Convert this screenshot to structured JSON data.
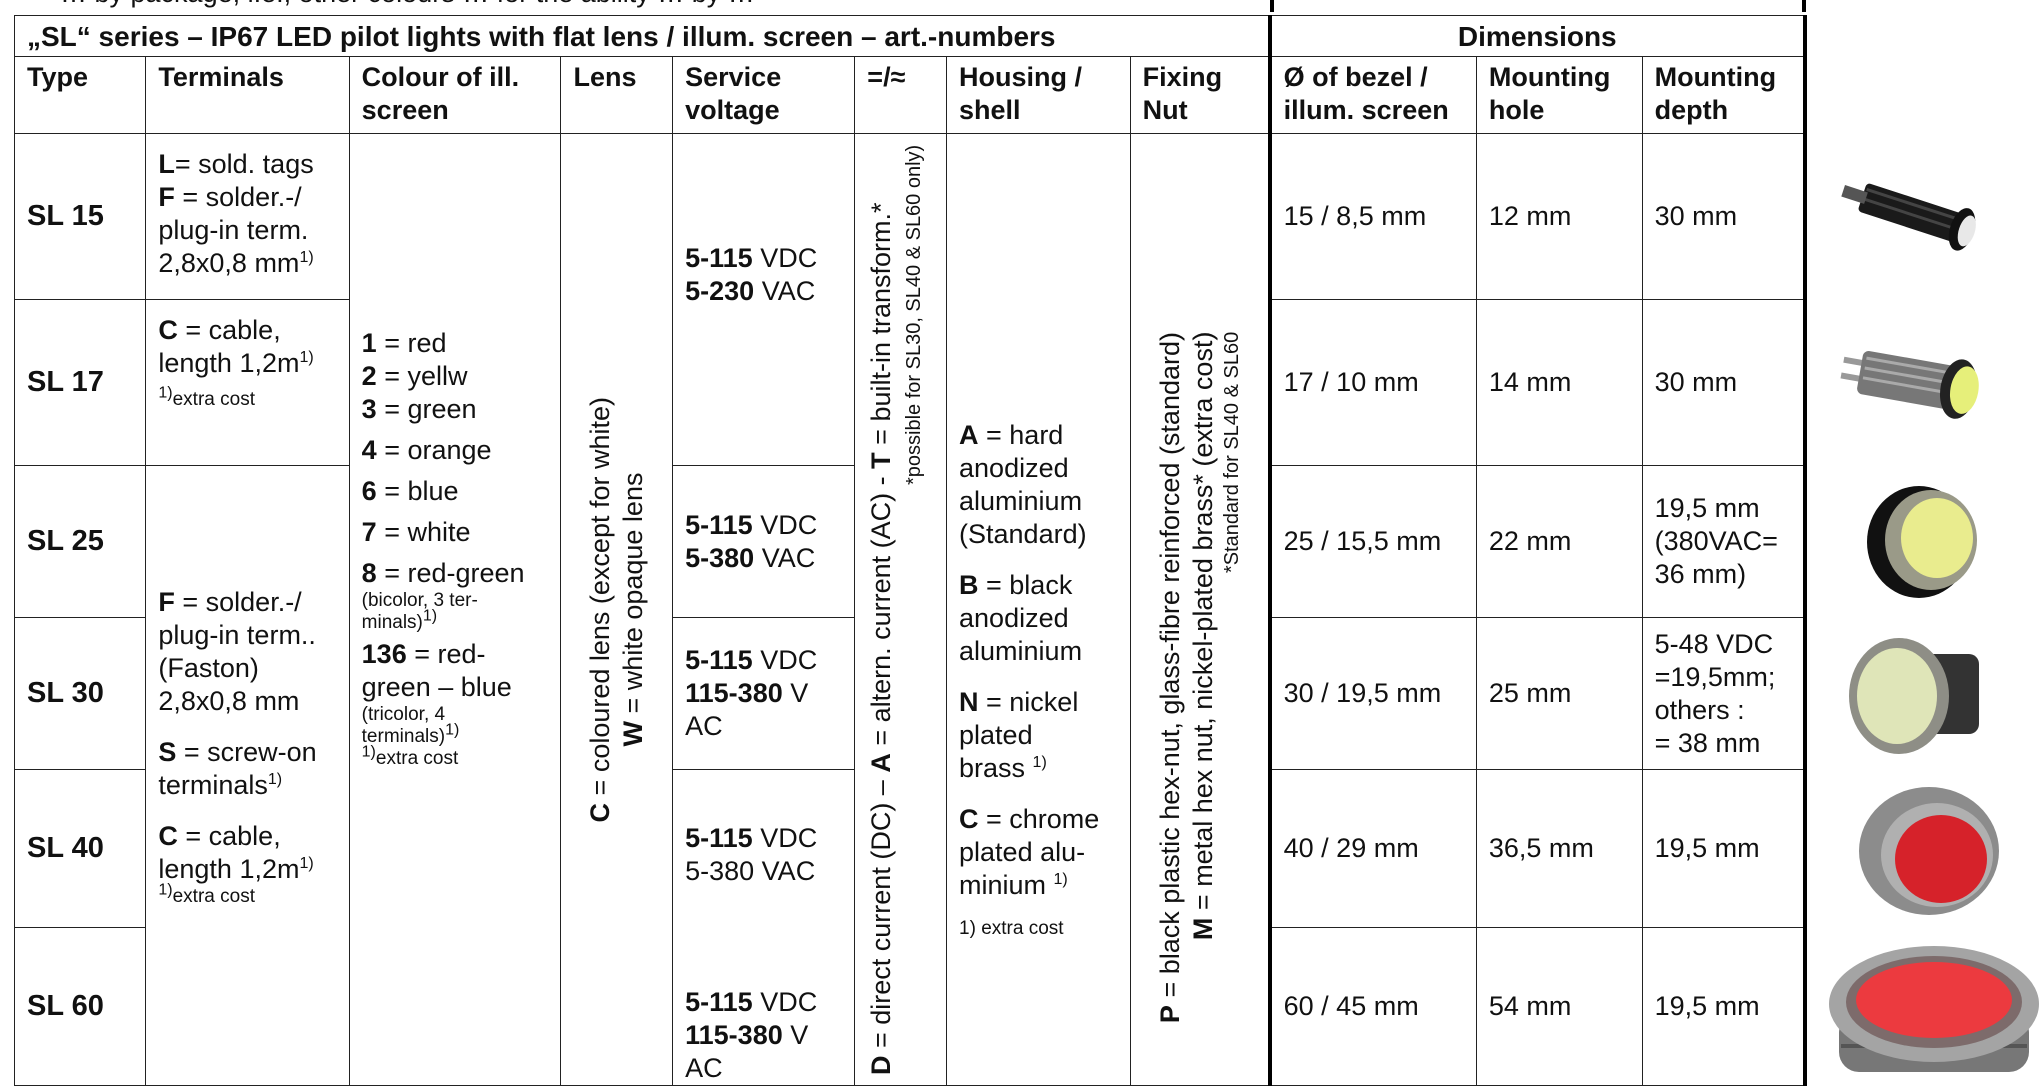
{
  "top_cut_text": "… by package, i.e., other colours … for the ability … by … ",
  "title": "„SL“ series – IP67 LED pilot lights with flat lens / illum. screen – art.-numbers",
  "dimensions_header": "Dimensions",
  "columns": {
    "type": "Type",
    "terminals": "Terminals",
    "colour_l1": "Colour of ill.",
    "colour_l2": "screen",
    "lens": "Lens",
    "service_l1": "Service",
    "service_l2": "voltage",
    "current": "=/≈",
    "housing_l1": "Housing /",
    "housing_l2": "shell",
    "fixing_l1": "Fixing",
    "fixing_l2": "Nut",
    "bezel_l1": "Ø of bezel /",
    "bezel_l2": "illum. screen",
    "hole_l1": "Mounting",
    "hole_l2": "hole",
    "depth_l1": "Mounting",
    "depth_l2": "depth"
  },
  "rows": [
    {
      "type": "SL 15",
      "bezel": "15  /  8,5 mm",
      "hole": "12 mm",
      "depth": "30 mm"
    },
    {
      "type": "SL 17",
      "bezel": "17  /  10 mm",
      "hole": "14 mm",
      "depth": "30 mm"
    },
    {
      "type": "SL 25",
      "bezel": "25 / 15,5 mm",
      "hole": "22 mm",
      "depth_l1": "19,5 mm",
      "depth_l2": "(380VAC=",
      "depth_l3": "36 mm)"
    },
    {
      "type": "SL 30",
      "bezel": "30 / 19,5 mm",
      "hole": "25 mm",
      "depth_l1": "5-48 VDC",
      "depth_l2": "=19,5mm;",
      "depth_l3": "others :",
      "depth_l4": "= 38 mm"
    },
    {
      "type": "SL 40",
      "bezel": "40  /  29 mm",
      "hole": "36,5 mm",
      "depth": "19,5 mm"
    },
    {
      "type": "SL 60",
      "bezel": "60  /  45 mm",
      "hole": "54 mm",
      "depth": "19,5 mm"
    }
  ],
  "terminals_a": {
    "l_code": "L",
    "l_text": "= sold. tags",
    "f_code": "F",
    "f_text1": " = solder.-/",
    "f_text2": "plug-in term.",
    "f_text3": "2,8x0,8 mm",
    "sup1": "1)",
    "c_code": "C",
    "c_text1": " = cable,",
    "c_text2": "length 1,2m",
    "sup2": "1)",
    "extra_sup": "1)",
    "extra": "extra cost"
  },
  "terminals_b": {
    "f_code": "F",
    "f_text1": " = solder.-/",
    "f_text2": "plug-in term..",
    "f_text3": "(Faston)",
    "f_text4": "2,8x0,8 mm",
    "s_code": "S",
    "s_text1": " = screw-on",
    "s_text2": "terminals",
    "s_sup": "1)",
    "c_code": "C",
    "c_text1": " = cable,",
    "c_text2": "length 1,2m",
    "c_sup": "1)",
    "extra_sup": "1)",
    "extra": "extra cost"
  },
  "colours": {
    "c1": "1",
    "t1": " = red",
    "c2": "2",
    "t2": " = yellw",
    "c3": "3",
    "t3": " = green",
    "c4": "4",
    "t4": " = orange",
    "c6": "6",
    "t6": " = blue",
    "c7": "7",
    "t7": " = white",
    "c8": "8",
    "t8": " = red-green",
    "n8a": "(bicolor, 3 ter-",
    "n8b": "minals)",
    "n8sup": "1)",
    "c136": "136",
    "t136a": " = red-",
    "t136b": "green – blue",
    "n136a": "(tricolor, 4",
    "n136b": "terminals)",
    "n136sup": "1)",
    "extra_sup": "1)",
    "extra": "extra cost"
  },
  "lens": {
    "c_code": "C",
    "c_text": " = coloured lens (except for white)",
    "w_code": "W",
    "w_text": " = white opaque lens"
  },
  "service": [
    {
      "a": "5-115",
      "a_unit": " VDC",
      "b": "5-230",
      "b_unit": " VAC",
      "b_bold": true
    },
    {
      "a": "5-115",
      "a_unit": " VDC",
      "b": "5-380",
      "b_unit": " VAC",
      "b_bold": true
    },
    {
      "a": "5-115",
      "a_unit": " VDC",
      "b": "115-380",
      "b_unit": " V",
      "c": "AC"
    },
    {
      "a": "5-115",
      "a_unit": " VDC",
      "b": "5-380 VAC"
    },
    {
      "a": "5-115",
      "a_unit": " VDC",
      "b": "115-380",
      "b_unit": " V",
      "c": "AC"
    }
  ],
  "current": {
    "d_code": "D",
    "d_text": " = direct current (DC) – ",
    "a_code": "A",
    "a_text": " = altern. current (AC)  - ",
    "t_code": "T",
    "t_text": " = built-in transform.*",
    "note": "*possible for SL30, SL40 & SL60 only)"
  },
  "housing": {
    "a_code": "A",
    "a1": " = hard",
    "a2": "anodized",
    "a3": "aluminium",
    "a4": "(Standard)",
    "b_code": "B",
    "b1": " = black",
    "b2": "anodized",
    "b3": "aluminium",
    "n_code": "N",
    "n1": " = nickel",
    "n2": "plated",
    "n3": "brass ",
    "n_sup": "1)",
    "c_code": "C",
    "c1": " = chrome",
    "c2": "plated alu-",
    "c3": "minium ",
    "c_sup": "1)",
    "extra": "1) extra cost"
  },
  "fixing": {
    "p_code": "P",
    "p_text": " = black plastic hex-nut, glass-fibre reinforced (standard)",
    "m_code": "M",
    "m_text": " = metal hex nut, nickel-plated brass* (extra cost)",
    "note": "*Standard for SL40 & SL60"
  }
}
